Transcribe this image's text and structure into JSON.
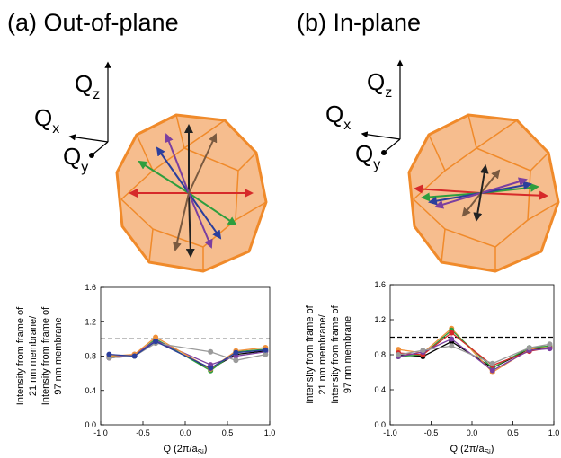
{
  "chart_data": [
    {
      "type": "line",
      "title": "(a) Out-of-plane",
      "x_label": {
        "main": "Q (2π/a",
        "sub": "Si",
        "end": ")"
      },
      "y_label": [
        "Intensity from frame of",
        "21 nm membrane/",
        "Intensity from frame of",
        "97 nm membrane"
      ],
      "xlim": [
        -1,
        1
      ],
      "ylim": [
        0,
        1.6
      ],
      "xticks": [
        {
          "value": -1,
          "label": "-1.0"
        },
        {
          "value": -0.5,
          "label": "-0.5"
        },
        {
          "value": 0,
          "label": "0.0"
        },
        {
          "value": 0.5,
          "label": "0.5"
        },
        {
          "value": 1,
          "label": "1.0"
        }
      ],
      "yticks": [
        {
          "value": 0,
          "label": "0.0"
        },
        {
          "value": 0.4,
          "label": "0.4"
        },
        {
          "value": 0.8,
          "label": "0.8"
        },
        {
          "value": 1.2,
          "label": "1.2"
        },
        {
          "value": 1.6,
          "label": "1.6"
        }
      ],
      "hline": 1.0,
      "x": [
        -0.9,
        -0.6,
        -0.35,
        0.3,
        0.6,
        0.95
      ],
      "series": [
        {
          "color": "#000000",
          "values": [
            0.78,
            0.8,
            0.98,
            0.65,
            0.82,
            0.86
          ]
        },
        {
          "color": "#2e9e3e",
          "values": [
            0.8,
            0.8,
            1.0,
            0.63,
            0.85,
            0.88
          ]
        },
        {
          "color": "#7b3fa0",
          "values": [
            0.78,
            0.82,
            0.98,
            0.7,
            0.8,
            0.85
          ]
        },
        {
          "color": "#f0913a",
          "values": [
            0.8,
            0.82,
            1.02,
            0.65,
            0.86,
            0.9
          ]
        },
        {
          "color": "#9a9a9a",
          "values": [
            0.78,
            0.8,
            0.95,
            0.85,
            0.75,
            0.82
          ]
        },
        {
          "color": "#2b3e9c",
          "values": [
            0.82,
            0.8,
            0.97,
            0.66,
            0.84,
            0.87
          ]
        }
      ]
    },
    {
      "type": "line",
      "title": "(b) In-plane",
      "x_label": {
        "main": "Q (2π/a",
        "sub": "Si",
        "end": ")"
      },
      "y_label": [
        "Intensity from frame of",
        "21 nm membrane/",
        "Intensity from frame of",
        "97 nm membrane"
      ],
      "xlim": [
        -1,
        1
      ],
      "ylim": [
        0,
        1.6
      ],
      "xticks": [
        {
          "value": -1,
          "label": "-1.0"
        },
        {
          "value": -0.5,
          "label": "-0.5"
        },
        {
          "value": 0,
          "label": "0.0"
        },
        {
          "value": 0.5,
          "label": "0.5"
        },
        {
          "value": 1,
          "label": "1.0"
        }
      ],
      "yticks": [
        {
          "value": 0,
          "label": "0.0"
        },
        {
          "value": 0.4,
          "label": "0.4"
        },
        {
          "value": 0.8,
          "label": "0.8"
        },
        {
          "value": 1.2,
          "label": "1.2"
        },
        {
          "value": 1.6,
          "label": "1.6"
        }
      ],
      "hline": 1.0,
      "x": [
        -0.9,
        -0.6,
        -0.25,
        0.25,
        0.7,
        0.95
      ],
      "series": [
        {
          "color": "#000000",
          "values": [
            0.8,
            0.78,
            0.95,
            0.65,
            0.86,
            0.88
          ]
        },
        {
          "color": "#f0913a",
          "values": [
            0.86,
            0.82,
            1.1,
            0.6,
            0.86,
            0.9
          ]
        },
        {
          "color": "#2e9e3e",
          "values": [
            0.78,
            0.8,
            1.08,
            0.65,
            0.88,
            0.9
          ]
        },
        {
          "color": "#d62a2a",
          "values": [
            0.82,
            0.8,
            1.05,
            0.68,
            0.84,
            0.88
          ]
        },
        {
          "color": "#7b3fa0",
          "values": [
            0.78,
            0.83,
            0.98,
            0.62,
            0.85,
            0.87
          ]
        },
        {
          "color": "#9a9a9a",
          "values": [
            0.8,
            0.85,
            0.9,
            0.7,
            0.88,
            0.92
          ]
        }
      ]
    }
  ],
  "illustrations": [
    {
      "axes": [
        {
          "main": "Q",
          "sub": "z"
        },
        {
          "main": "Q",
          "sub": "x"
        },
        {
          "main": "Q",
          "sub": "y"
        }
      ]
    },
    {
      "axes": [
        {
          "main": "Q",
          "sub": "z"
        },
        {
          "main": "Q",
          "sub": "x"
        },
        {
          "main": "Q",
          "sub": "y"
        }
      ]
    }
  ]
}
